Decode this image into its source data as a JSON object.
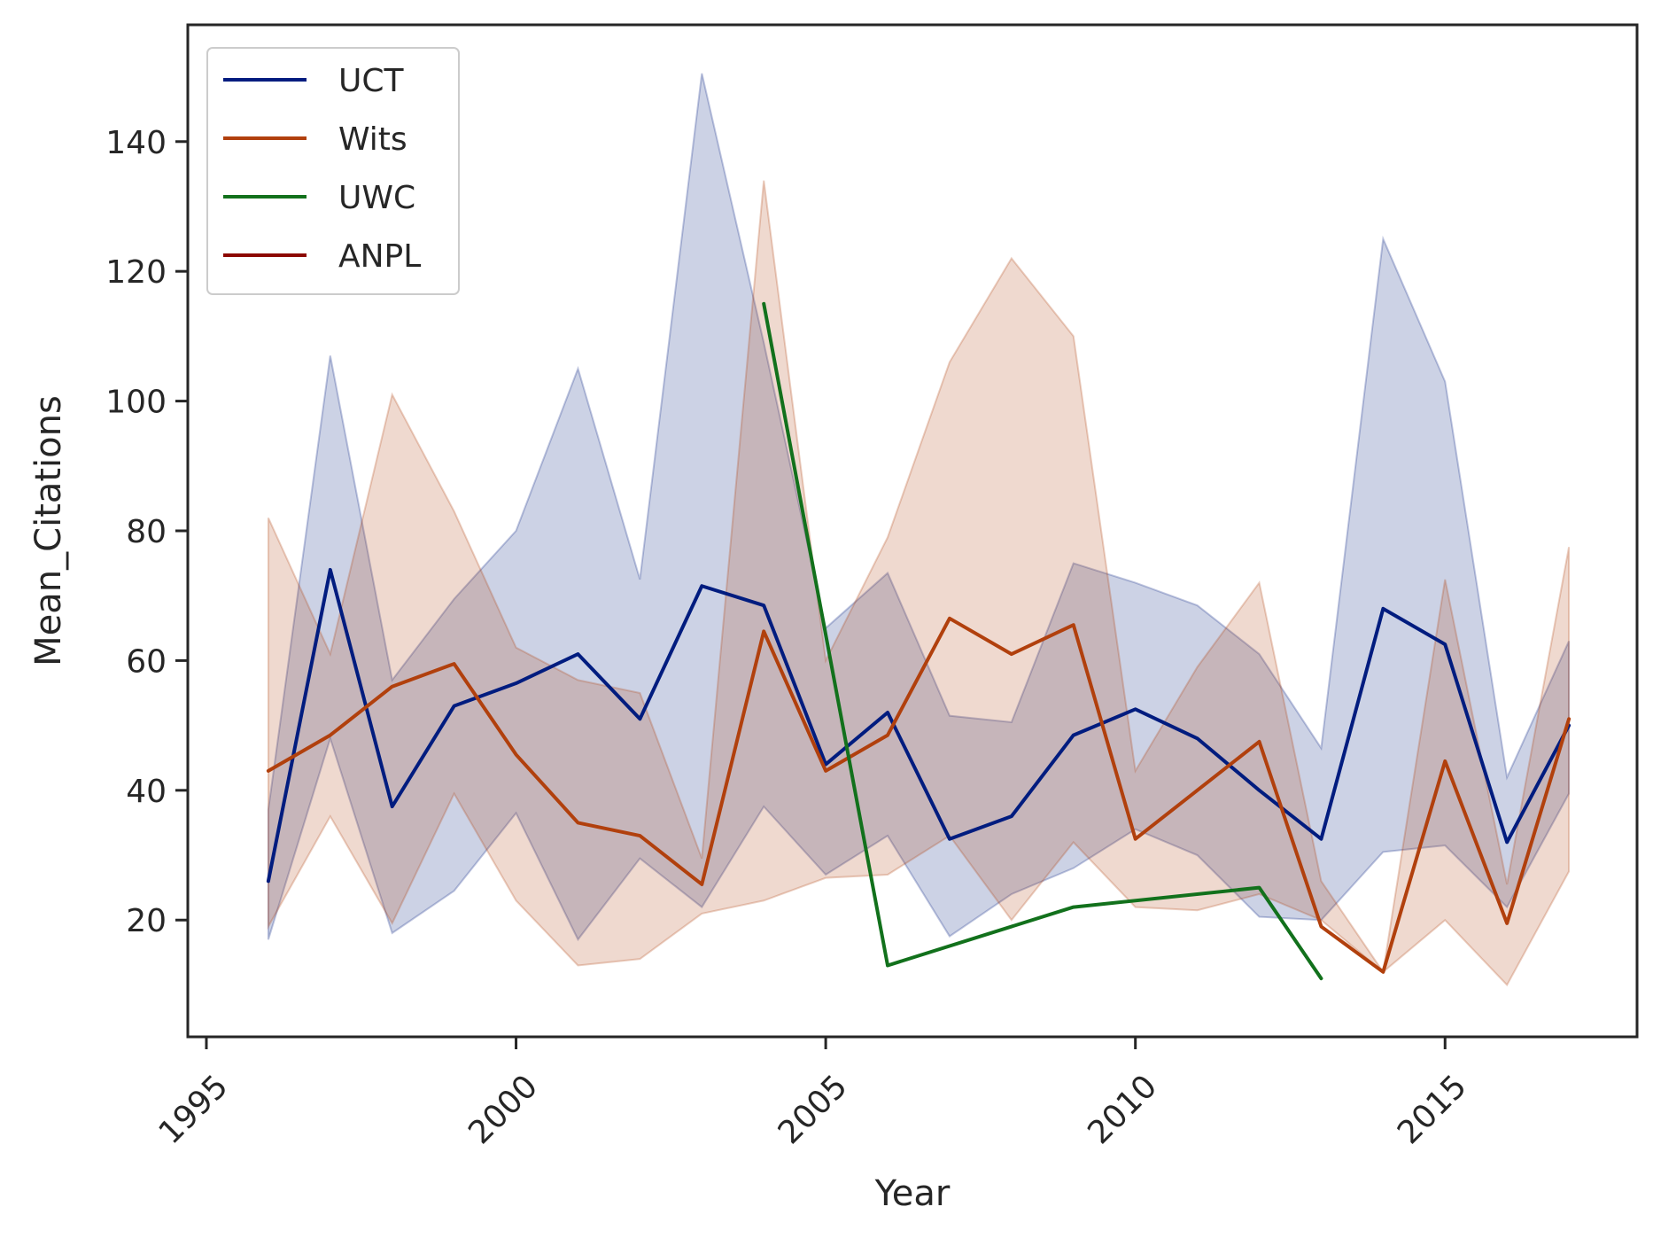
{
  "chart_data": {
    "type": "line",
    "xlabel": "Year",
    "ylabel": "Mean_Citations",
    "xlim": [
      1994.7,
      2018.1
    ],
    "ylim": [
      2,
      158
    ],
    "xticks": [
      1995,
      2000,
      2005,
      2010,
      2015
    ],
    "yticks": [
      20,
      40,
      60,
      80,
      100,
      120,
      140
    ],
    "grid": false,
    "legend_position": "top-left",
    "series": [
      {
        "name": "UCT",
        "color": "#001c7f",
        "x": [
          1996,
          1997,
          1998,
          1999,
          2000,
          2001,
          2002,
          2003,
          2004,
          2005,
          2006,
          2007,
          2008,
          2009,
          2010,
          2011,
          2012,
          2013,
          2014,
          2015,
          2016,
          2017
        ],
        "values": [
          26,
          74,
          37.5,
          53,
          56.5,
          61,
          51,
          71.5,
          68.5,
          44,
          52,
          32.5,
          36,
          48.5,
          52.5,
          48,
          40,
          32.5,
          68,
          62.5,
          32,
          50
        ],
        "ci_low": [
          17,
          48,
          18,
          24.5,
          36.5,
          17,
          29.5,
          22,
          37.5,
          27,
          33,
          17.5,
          24,
          28,
          34,
          30,
          20.5,
          20,
          30.5,
          31.5,
          22,
          39.5
        ],
        "ci_high": [
          37,
          107,
          57,
          69.5,
          80,
          105,
          72.5,
          150.5,
          109,
          65,
          73.5,
          51.5,
          50.5,
          75,
          72,
          68.5,
          61,
          46.5,
          125,
          103,
          42,
          63
        ]
      },
      {
        "name": "Wits",
        "color": "#b1400d",
        "x": [
          1996,
          1997,
          1998,
          1999,
          2000,
          2001,
          2002,
          2003,
          2004,
          2005,
          2006,
          2007,
          2008,
          2009,
          2010,
          2011,
          2012,
          2013,
          2014,
          2015,
          2016,
          2017
        ],
        "values": [
          43,
          48.5,
          56,
          59.5,
          45.5,
          35,
          33,
          25.5,
          64.5,
          43,
          48.5,
          66.5,
          61,
          65.5,
          32.5,
          40,
          47.5,
          19,
          12,
          44.5,
          19.5,
          51
        ],
        "ci_low": [
          19,
          36,
          19.5,
          39.5,
          23,
          13,
          14,
          21,
          23,
          26.5,
          27,
          33,
          20,
          32,
          22,
          21.5,
          24,
          20,
          12,
          20,
          10,
          27.5
        ],
        "ci_high": [
          82,
          61,
          101,
          83,
          62,
          57,
          55,
          29.5,
          134,
          60,
          79,
          106,
          122,
          110,
          43,
          59,
          72,
          26,
          12,
          72.5,
          25.5,
          77.5
        ]
      },
      {
        "name": "UWC",
        "color": "#12711c",
        "x": [
          2004,
          2006,
          2009,
          2012,
          2013
        ],
        "values": [
          115,
          13,
          22,
          25,
          11
        ],
        "ci_low": [],
        "ci_high": []
      },
      {
        "name": "ANPL",
        "color": "#8c0800",
        "x": [],
        "values": [],
        "ci_low": [],
        "ci_high": []
      }
    ]
  }
}
